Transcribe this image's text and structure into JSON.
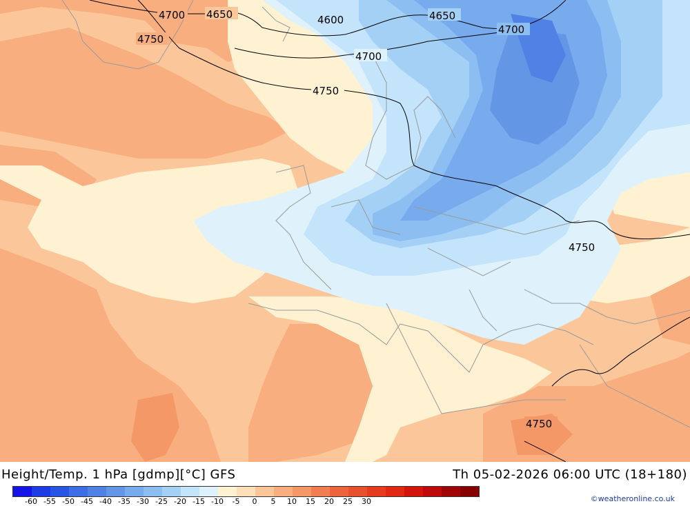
{
  "map": {
    "contour_labels": [
      "4700",
      "4650",
      "4600",
      "4650",
      "4700",
      "4750",
      "4700",
      "4750",
      "4750",
      "4750"
    ]
  },
  "footer": {
    "title": "Height/Temp. 1 hPa [gdmp][°C] GFS",
    "datetime": "Th 05-02-2026 06:00 UTC (18+180)",
    "credit": "©weatheronline.co.uk"
  },
  "legend": {
    "colors": [
      "#1414e6",
      "#1e3ce6",
      "#2855e6",
      "#3c6ee6",
      "#5082e6",
      "#6496e6",
      "#78aaee",
      "#8cbef2",
      "#a5d0f6",
      "#c3e4fa",
      "#dff2fc",
      "#fff2d2",
      "#fde0b8",
      "#fbc79a",
      "#f9ae80",
      "#f59868",
      "#f17e50",
      "#ed643c",
      "#e9502d",
      "#e53c1e",
      "#e12814",
      "#d2140a",
      "#be0a0a",
      "#a00505",
      "#870000"
    ],
    "ticks": [
      "-60",
      "-55",
      "-50",
      "-45",
      "-40",
      "-35",
      "-30",
      "-25",
      "-20",
      "-15",
      "-10",
      "-5",
      "0",
      "5",
      "10",
      "15",
      "20",
      "25",
      "30"
    ]
  }
}
